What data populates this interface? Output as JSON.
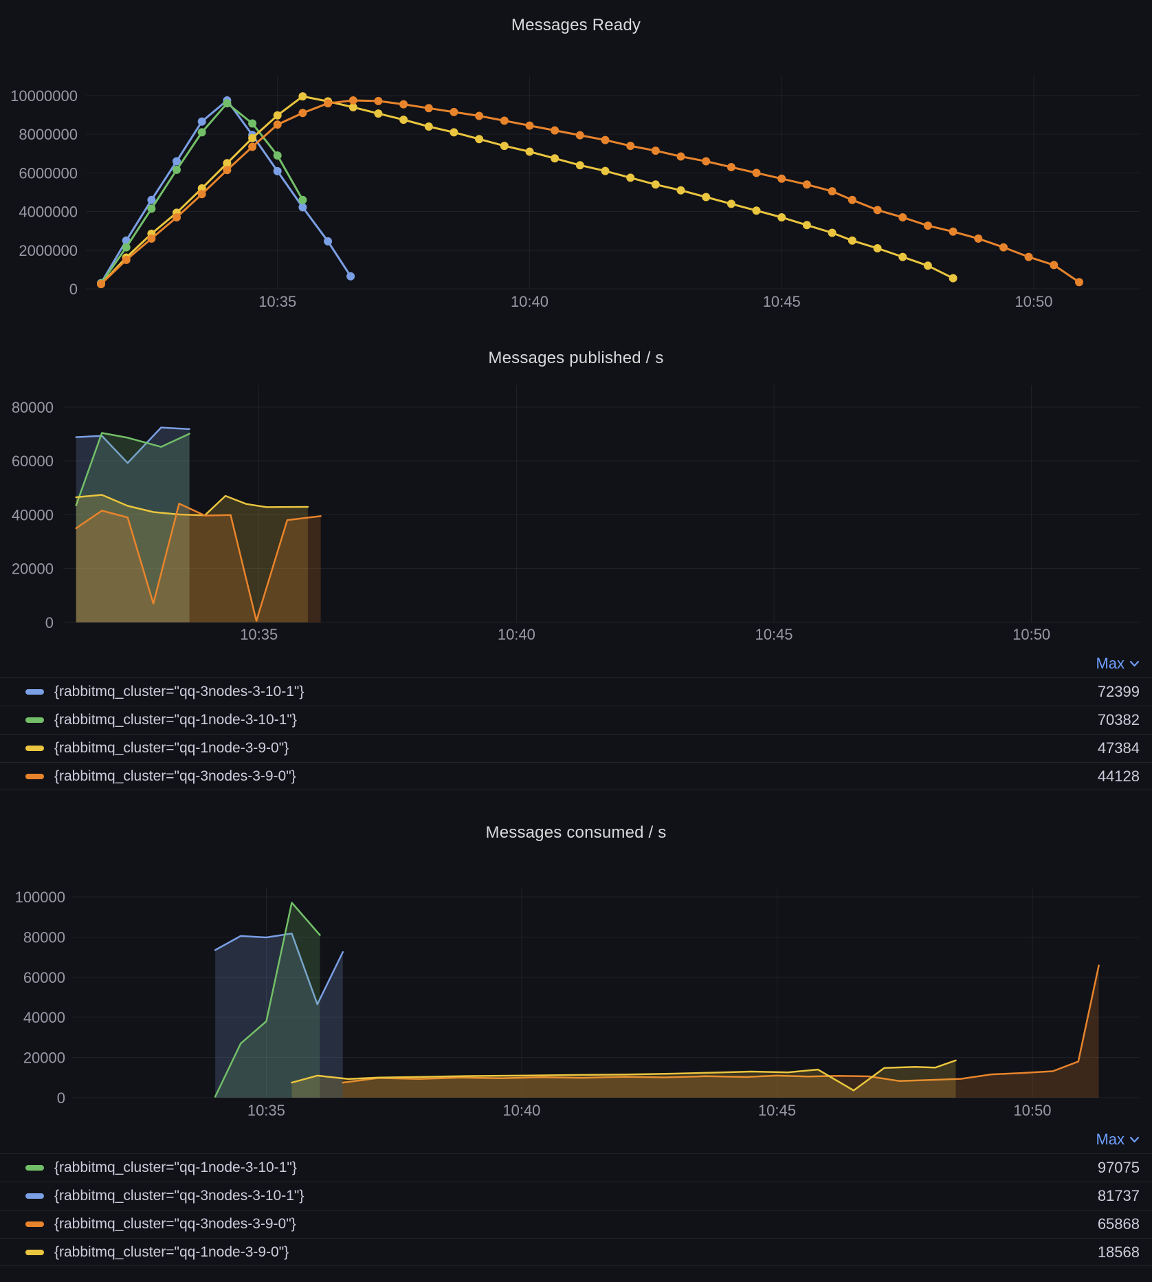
{
  "colors": {
    "background": "#111217",
    "grid": "rgba(204,204,220,0.08)",
    "tick_text": "rgba(204,204,220,0.72)",
    "title_text": "#D8D9DA",
    "legend_text": "#CCCCDC",
    "max_header": "#6E9FFF",
    "series_blue": "#7B9FE4",
    "series_green": "#73BF69",
    "series_yellow": "#EAC53F",
    "series_orange": "#E8842C"
  },
  "chart_data": [
    {
      "type": "line",
      "title": "Messages Ready",
      "xlabel": "",
      "ylabel": "",
      "grid": true,
      "show_points": true,
      "ylim": [
        0,
        10740000
      ],
      "y_ticks": [
        0,
        2000000,
        4000000,
        6000000,
        8000000,
        10000000
      ],
      "x_ticks": [
        {
          "t": 35,
          "label": "10:35"
        },
        {
          "t": 40,
          "label": "10:40"
        },
        {
          "t": 45,
          "label": "10:45"
        },
        {
          "t": 50,
          "label": "10:50"
        }
      ],
      "x_unit": "minutes after 10:00",
      "series": [
        {
          "name": "{rabbitmq_cluster=\"qq-3nodes-3-10-1\"}",
          "color": "#7B9FE4",
          "points": [
            [
              31.5,
              300000
            ],
            [
              32,
              2500000
            ],
            [
              32.5,
              4600000
            ],
            [
              33,
              6600000
            ],
            [
              33.5,
              8660000
            ],
            [
              34,
              9750000
            ],
            [
              34.5,
              7960000
            ],
            [
              35,
              6090000
            ],
            [
              35.5,
              4220000
            ],
            [
              36,
              2460000
            ],
            [
              36.45,
              650000
            ]
          ]
        },
        {
          "name": "{rabbitmq_cluster=\"qq-1node-3-10-1\"}",
          "color": "#73BF69",
          "points": [
            [
              31.5,
              280000
            ],
            [
              32,
              2150000
            ],
            [
              32.5,
              4150000
            ],
            [
              33,
              6160000
            ],
            [
              33.5,
              8100000
            ],
            [
              34,
              9600000
            ],
            [
              34.5,
              8560000
            ],
            [
              35,
              6900000
            ],
            [
              35.5,
              4600000
            ]
          ]
        },
        {
          "name": "{rabbitmq_cluster=\"qq-1node-3-9-0\"}",
          "color": "#EAC53F",
          "points": [
            [
              31.5,
              250000
            ],
            [
              32,
              1620000
            ],
            [
              32.5,
              2850000
            ],
            [
              33,
              3940000
            ],
            [
              33.5,
              5200000
            ],
            [
              34,
              6500000
            ],
            [
              34.5,
              7800000
            ],
            [
              35,
              8980000
            ],
            [
              35.5,
              9960000
            ],
            [
              36,
              9700000
            ],
            [
              36.5,
              9400000
            ],
            [
              37,
              9070000
            ],
            [
              37.5,
              8750000
            ],
            [
              38,
              8400000
            ],
            [
              38.5,
              8100000
            ],
            [
              39,
              7750000
            ],
            [
              39.5,
              7400000
            ],
            [
              40,
              7100000
            ],
            [
              40.5,
              6750000
            ],
            [
              41,
              6400000
            ],
            [
              41.5,
              6100000
            ],
            [
              42,
              5750000
            ],
            [
              42.5,
              5400000
            ],
            [
              43,
              5100000
            ],
            [
              43.5,
              4750000
            ],
            [
              44,
              4400000
            ],
            [
              44.5,
              4050000
            ],
            [
              45,
              3700000
            ],
            [
              45.5,
              3300000
            ],
            [
              46,
              2900000
            ],
            [
              46.4,
              2500000
            ],
            [
              46.9,
              2100000
            ],
            [
              47.4,
              1650000
            ],
            [
              47.9,
              1200000
            ],
            [
              48.4,
              550000
            ]
          ]
        },
        {
          "name": "{rabbitmq_cluster=\"qq-3nodes-3-9-0\"}",
          "color": "#E8842C",
          "points": [
            [
              31.5,
              250000
            ],
            [
              32,
              1500000
            ],
            [
              32.5,
              2600000
            ],
            [
              33,
              3700000
            ],
            [
              33.5,
              4900000
            ],
            [
              34,
              6150000
            ],
            [
              34.5,
              7350000
            ],
            [
              35,
              8500000
            ],
            [
              35.5,
              9100000
            ],
            [
              36,
              9600000
            ],
            [
              36.5,
              9750000
            ],
            [
              37,
              9720000
            ],
            [
              37.5,
              9550000
            ],
            [
              38,
              9350000
            ],
            [
              38.5,
              9150000
            ],
            [
              39,
              8950000
            ],
            [
              39.5,
              8700000
            ],
            [
              40,
              8450000
            ],
            [
              40.5,
              8200000
            ],
            [
              41,
              7950000
            ],
            [
              41.5,
              7700000
            ],
            [
              42,
              7400000
            ],
            [
              42.5,
              7150000
            ],
            [
              43,
              6850000
            ],
            [
              43.5,
              6600000
            ],
            [
              44,
              6300000
            ],
            [
              44.5,
              6000000
            ],
            [
              45,
              5700000
            ],
            [
              45.5,
              5400000
            ],
            [
              46,
              5050000
            ],
            [
              46.4,
              4600000
            ],
            [
              46.9,
              4080000
            ],
            [
              47.4,
              3700000
            ],
            [
              47.9,
              3270000
            ],
            [
              48.4,
              2960000
            ],
            [
              48.9,
              2600000
            ],
            [
              49.4,
              2150000
            ],
            [
              49.9,
              1650000
            ],
            [
              50.4,
              1230000
            ],
            [
              50.9,
              350000
            ]
          ]
        }
      ],
      "legend": null
    },
    {
      "type": "area",
      "title": "Messages published / s",
      "xlabel": "",
      "ylabel": "",
      "grid": true,
      "show_points": false,
      "ylim": [
        0,
        88000
      ],
      "y_ticks": [
        0,
        20000,
        40000,
        60000,
        80000
      ],
      "x_ticks": [
        {
          "t": 35,
          "label": "10:35"
        },
        {
          "t": 40,
          "label": "10:40"
        },
        {
          "t": 45,
          "label": "10:45"
        },
        {
          "t": 50,
          "label": "10:50"
        }
      ],
      "x_unit": "minutes after 10:00",
      "series": [
        {
          "name": "{rabbitmq_cluster=\"qq-3nodes-3-10-1\"}",
          "color": "#7B9FE4",
          "points": [
            [
              31.45,
              68800
            ],
            [
              31.95,
              69300
            ],
            [
              32.45,
              59200
            ],
            [
              33.1,
              72399
            ],
            [
              33.65,
              71800
            ]
          ]
        },
        {
          "name": "{rabbitmq_cluster=\"qq-1node-3-10-1\"}",
          "color": "#73BF69",
          "points": [
            [
              31.45,
              43500
            ],
            [
              31.95,
              70382
            ],
            [
              32.45,
              68600
            ],
            [
              33.1,
              65200
            ],
            [
              33.65,
              70100
            ]
          ]
        },
        {
          "name": "{rabbitmq_cluster=\"qq-1node-3-9-0\"}",
          "color": "#EAC53F",
          "points": [
            [
              31.45,
              46500
            ],
            [
              31.95,
              47384
            ],
            [
              32.45,
              43300
            ],
            [
              32.95,
              41000
            ],
            [
              33.45,
              40100
            ],
            [
              33.95,
              39800
            ],
            [
              34.35,
              47000
            ],
            [
              34.75,
              44000
            ],
            [
              35.15,
              42800
            ],
            [
              35.95,
              42900
            ]
          ]
        },
        {
          "name": "{rabbitmq_cluster=\"qq-3nodes-3-9-0\"}",
          "color": "#E8842C",
          "points": [
            [
              31.45,
              35000
            ],
            [
              31.95,
              41500
            ],
            [
              32.45,
              39000
            ],
            [
              32.95,
              7000
            ],
            [
              33.45,
              44128
            ],
            [
              33.95,
              39700
            ],
            [
              34.45,
              39900
            ],
            [
              34.95,
              600
            ],
            [
              35.55,
              38000
            ],
            [
              36.2,
              39500
            ]
          ]
        }
      ],
      "legend": {
        "header": "Max",
        "rows": [
          {
            "label": "{rabbitmq_cluster=\"qq-3nodes-3-10-1\"}",
            "color": "#7B9FE4",
            "value": 72399
          },
          {
            "label": "{rabbitmq_cluster=\"qq-1node-3-10-1\"}",
            "color": "#73BF69",
            "value": 70382
          },
          {
            "label": "{rabbitmq_cluster=\"qq-1node-3-9-0\"}",
            "color": "#EAC53F",
            "value": 47384
          },
          {
            "label": "{rabbitmq_cluster=\"qq-3nodes-3-9-0\"}",
            "color": "#E8842C",
            "value": 44128
          }
        ]
      }
    },
    {
      "type": "area",
      "title": "Messages consumed / s",
      "xlabel": "",
      "ylabel": "",
      "grid": true,
      "show_points": false,
      "ylim": [
        0,
        104800
      ],
      "y_ticks": [
        0,
        20000,
        40000,
        60000,
        80000,
        100000
      ],
      "x_ticks": [
        {
          "t": 35,
          "label": "10:35"
        },
        {
          "t": 40,
          "label": "10:40"
        },
        {
          "t": 45,
          "label": "10:45"
        },
        {
          "t": 50,
          "label": "10:50"
        }
      ],
      "x_unit": "minutes after 10:00",
      "series": [
        {
          "name": "{rabbitmq_cluster=\"qq-3nodes-3-10-1\"}",
          "color": "#7B9FE4",
          "points": [
            [
              34,
              73500
            ],
            [
              34.5,
              80500
            ],
            [
              35,
              79800
            ],
            [
              35.5,
              81737
            ],
            [
              36,
              46500
            ],
            [
              36.5,
              72500
            ]
          ]
        },
        {
          "name": "{rabbitmq_cluster=\"qq-1node-3-10-1\"}",
          "color": "#73BF69",
          "points": [
            [
              34,
              500
            ],
            [
              34.5,
              27000
            ],
            [
              35,
              38000
            ],
            [
              35.5,
              97075
            ],
            [
              36.05,
              81000
            ]
          ]
        },
        {
          "name": "{rabbitmq_cluster=\"qq-3nodes-3-9-0\"}",
          "color": "#E8842C",
          "points": [
            [
              36.5,
              7500
            ],
            [
              37.2,
              9800
            ],
            [
              38,
              9300
            ],
            [
              38.8,
              10000
            ],
            [
              39.6,
              9700
            ],
            [
              40.4,
              10200
            ],
            [
              41.2,
              9900
            ],
            [
              42,
              10400
            ],
            [
              42.8,
              10100
            ],
            [
              43.6,
              10700
            ],
            [
              44.4,
              10300
            ],
            [
              45,
              11000
            ],
            [
              45.6,
              10500
            ],
            [
              46.2,
              10900
            ],
            [
              46.8,
              10600
            ],
            [
              47.4,
              8300
            ],
            [
              48,
              8800
            ],
            [
              48.6,
              9400
            ],
            [
              49.2,
              11600
            ],
            [
              49.8,
              12300
            ],
            [
              50.4,
              13200
            ],
            [
              50.9,
              18000
            ],
            [
              51.3,
              65868
            ]
          ]
        },
        {
          "name": "{rabbitmq_cluster=\"qq-1node-3-9-0\"}",
          "color": "#EAC53F",
          "points": [
            [
              35.5,
              7500
            ],
            [
              36,
              11000
            ],
            [
              36.6,
              9300
            ],
            [
              37.2,
              10000
            ],
            [
              38,
              10300
            ],
            [
              39,
              10800
            ],
            [
              40,
              11000
            ],
            [
              41,
              11300
            ],
            [
              42,
              11500
            ],
            [
              43,
              12000
            ],
            [
              43.8,
              12500
            ],
            [
              44.5,
              13000
            ],
            [
              45.2,
              12600
            ],
            [
              45.8,
              14000
            ],
            [
              46.5,
              3600
            ],
            [
              47.1,
              14800
            ],
            [
              47.7,
              15300
            ],
            [
              48.1,
              15000
            ],
            [
              48.5,
              18568
            ]
          ]
        }
      ],
      "legend": {
        "header": "Max",
        "rows": [
          {
            "label": "{rabbitmq_cluster=\"qq-1node-3-10-1\"}",
            "color": "#73BF69",
            "value": 97075
          },
          {
            "label": "{rabbitmq_cluster=\"qq-3nodes-3-10-1\"}",
            "color": "#7B9FE4",
            "value": 81737
          },
          {
            "label": "{rabbitmq_cluster=\"qq-3nodes-3-9-0\"}",
            "color": "#E8842C",
            "value": 65868
          },
          {
            "label": "{rabbitmq_cluster=\"qq-1node-3-9-0\"}",
            "color": "#EAC53F",
            "value": 18568
          }
        ]
      }
    }
  ]
}
